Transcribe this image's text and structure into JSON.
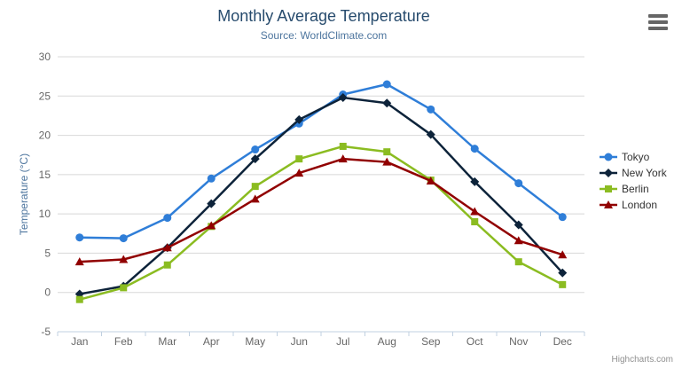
{
  "header": {
    "title": "Monthly Average Temperature",
    "subtitle": "Source: WorldClimate.com"
  },
  "chart_data": {
    "type": "line",
    "title": "Monthly Average Temperature",
    "subtitle": "Source: WorldClimate.com",
    "xlabel": "",
    "ylabel": "Temperature (°C)",
    "categories": [
      "Jan",
      "Feb",
      "Mar",
      "Apr",
      "May",
      "Jun",
      "Jul",
      "Aug",
      "Sep",
      "Oct",
      "Nov",
      "Dec"
    ],
    "series": [
      {
        "name": "Tokyo",
        "color": "#2f7ed8",
        "marker": "circle",
        "values": [
          7.0,
          6.9,
          9.5,
          14.5,
          18.2,
          21.5,
          25.2,
          26.5,
          23.3,
          18.3,
          13.9,
          9.6
        ]
      },
      {
        "name": "New York",
        "color": "#0d233a",
        "marker": "diamond",
        "values": [
          -0.2,
          0.8,
          5.7,
          11.3,
          17.0,
          22.0,
          24.8,
          24.1,
          20.1,
          14.1,
          8.6,
          2.5
        ]
      },
      {
        "name": "Berlin",
        "color": "#8bbc21",
        "marker": "square",
        "values": [
          -0.9,
          0.6,
          3.5,
          8.4,
          13.5,
          17.0,
          18.6,
          17.9,
          14.3,
          9.0,
          3.9,
          1.0
        ]
      },
      {
        "name": "London",
        "color": "#910000",
        "marker": "triangle",
        "values": [
          3.9,
          4.2,
          5.7,
          8.5,
          11.9,
          15.2,
          17.0,
          16.6,
          14.2,
          10.3,
          6.6,
          4.8
        ]
      }
    ],
    "ylim": [
      -5,
      30
    ],
    "yticks": [
      -5,
      0,
      5,
      10,
      15,
      20,
      25,
      30
    ],
    "grid": true,
    "legend_position": "right",
    "colors": {
      "gridline": "#d8d8d8",
      "axis_line": "#c0d0e0",
      "axis_label": "#666666",
      "title": "#274b6d",
      "subtitle": "#4d759e"
    }
  },
  "menu": {
    "name": "chart context menu"
  },
  "credits": {
    "label": "Highcharts.com"
  }
}
